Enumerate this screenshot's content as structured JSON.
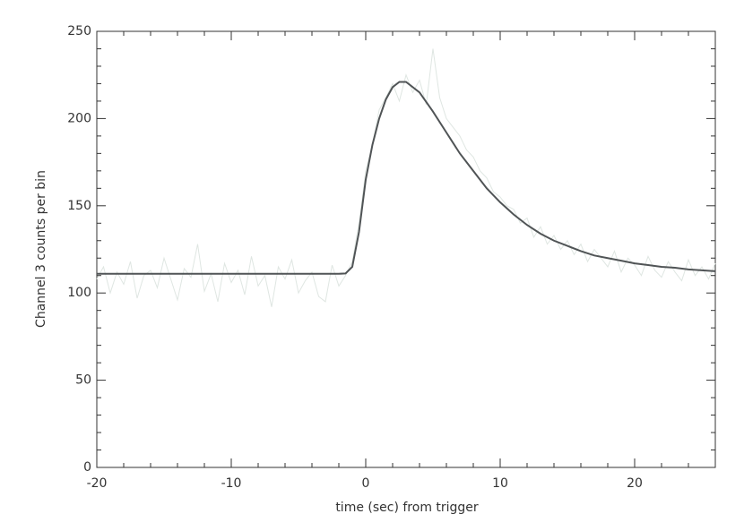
{
  "chart_data": {
    "type": "line",
    "x_label": "time (sec) from trigger",
    "y_label": "Channel 3 counts per bin",
    "xlim": [
      -20,
      26
    ],
    "xticks": [
      -20,
      -10,
      0,
      10,
      20
    ],
    "ylim": [
      0,
      250
    ],
    "yticks": [
      0,
      50,
      100,
      150,
      200,
      250
    ],
    "x_minor_ticks": [
      -18,
      -16,
      -14,
      -12,
      -8,
      -6,
      -4,
      -2,
      2,
      4,
      6,
      8,
      12,
      14,
      16,
      18,
      22,
      24
    ],
    "y_minor_ticks": [
      10,
      20,
      30,
      40,
      60,
      70,
      80,
      90,
      110,
      120,
      130,
      140,
      160,
      170,
      180,
      190,
      210,
      220,
      230,
      240
    ],
    "series": [
      {
        "color": "#dfe6e2",
        "x": [
          -20,
          -19.5,
          -19,
          -18.5,
          -18,
          -17.5,
          -17,
          -16.5,
          -16,
          -15.5,
          -15,
          -14.5,
          -14,
          -13.5,
          -13,
          -12.5,
          -12,
          -11.5,
          -11,
          -10.5,
          -10,
          -9.5,
          -9,
          -8.5,
          -8,
          -7.5,
          -7,
          -6.5,
          -6,
          -5.5,
          -5,
          -4.5,
          -4,
          -3.5,
          -3,
          -2.5,
          -2,
          -1.5,
          -1,
          -0.5,
          0,
          0.5,
          1,
          1.5,
          2,
          2.5,
          3,
          3.5,
          4,
          4.5,
          5,
          5.5,
          6,
          6.5,
          7,
          7.5,
          8,
          8.5,
          9,
          9.5,
          10,
          10.5,
          11,
          11.5,
          12,
          12.5,
          13,
          13.5,
          14,
          14.5,
          15,
          15.5,
          16,
          16.5,
          17,
          17.5,
          18,
          18.5,
          19,
          19.5,
          20,
          20.5,
          21,
          21.5,
          22,
          22.5,
          23,
          23.5,
          24,
          24.5,
          25,
          25.5,
          26
        ],
        "values": [
          108,
          115,
          100,
          112,
          105,
          118,
          97,
          110,
          113,
          103,
          120,
          108,
          96,
          114,
          109,
          128,
          101,
          111,
          95,
          117,
          106,
          113,
          99,
          121,
          104,
          110,
          92,
          115,
          108,
          119,
          100,
          107,
          112,
          98,
          95,
          116,
          104,
          110,
          118,
          140,
          170,
          185,
          205,
          212,
          220,
          210,
          225,
          215,
          222,
          208,
          240,
          212,
          200,
          195,
          190,
          182,
          178,
          170,
          166,
          158,
          155,
          150,
          148,
          140,
          143,
          132,
          138,
          128,
          133,
          125,
          130,
          122,
          128,
          118,
          125,
          120,
          115,
          124,
          112,
          120,
          116,
          110,
          121,
          113,
          109,
          118,
          112,
          107,
          119,
          110,
          115,
          108,
          117
        ]
      },
      {
        "color": "#505456",
        "x": [
          -20,
          -19,
          -18,
          -17,
          -16,
          -15,
          -14,
          -13,
          -12,
          -11,
          -10,
          -9,
          -8,
          -7,
          -6,
          -5,
          -4,
          -3,
          -2,
          -1.5,
          -1,
          -0.5,
          0,
          0.5,
          1,
          1.5,
          2,
          2.5,
          3,
          4,
          5,
          6,
          7,
          8,
          9,
          10,
          11,
          12,
          13,
          14,
          15,
          16,
          17,
          18,
          19,
          20,
          21,
          22,
          23,
          24,
          25,
          26
        ],
        "values": [
          111,
          111,
          111,
          111,
          111,
          111,
          111,
          111,
          111,
          111,
          111,
          111,
          111,
          111,
          111,
          111,
          111,
          111,
          111,
          111.2,
          115,
          135,
          165,
          185,
          200,
          211,
          218,
          221,
          221,
          215,
          204,
          192,
          180,
          170,
          160,
          152,
          145,
          139,
          134,
          130,
          127,
          124,
          121.5,
          120,
          118.5,
          117,
          116,
          115,
          114.5,
          113.5,
          113,
          112.5
        ]
      }
    ]
  }
}
